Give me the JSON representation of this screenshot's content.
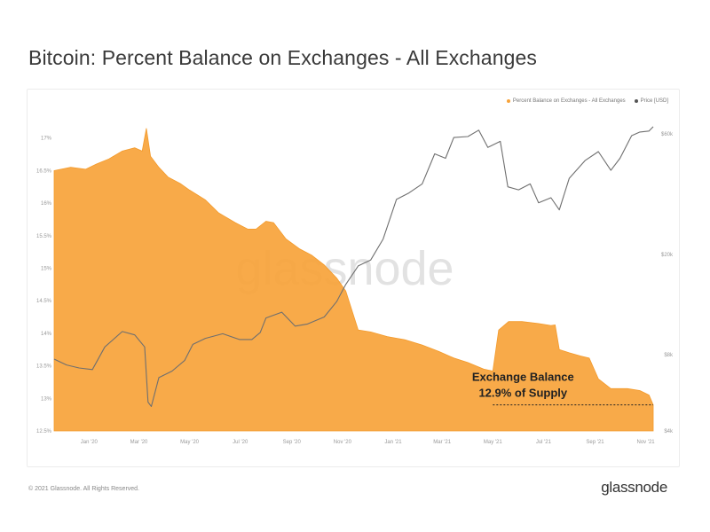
{
  "header": {
    "title": "Bitcoin: Percent Balance on Exchanges - All Exchanges"
  },
  "footer": {
    "copyright": "© 2021 Glassnode. All Rights Reserved.",
    "logo": "glassnode"
  },
  "watermark": "glassnode",
  "colors": {
    "balance": "#f7a33a",
    "price": "#8a8a8a",
    "accent": "#f7931a"
  },
  "chart_data": {
    "type": "area",
    "title": "Bitcoin: Percent Balance on Exchanges - All Exchanges",
    "legend_position": "top-right",
    "legend": [
      "Percent Balance on Exchanges - All Exchanges",
      "Price [USD]"
    ],
    "x_ticks": [
      "Jan '20",
      "Mar '20",
      "May '20",
      "Jul '20",
      "Sep '20",
      "Nov '20",
      "Jan '21",
      "Mar '21",
      "May '21",
      "Jul '21",
      "Sep '21",
      "Nov '21"
    ],
    "y_left_ticks": [
      "17%",
      "16.5%",
      "16%",
      "15.5%",
      "15%",
      "14.5%",
      "14%",
      "13.5%",
      "13%",
      "12.5%"
    ],
    "y_left_range": [
      12.5,
      17.2
    ],
    "y_right_ticks": [
      "$60k",
      "$20k",
      "$8k",
      "$4k"
    ],
    "y_right_values": [
      60000,
      20000,
      8000,
      4000
    ],
    "y_right_scale": "log",
    "y_right_range": [
      4000,
      65000
    ],
    "x_range": [
      "2019-11-20",
      "2021-11-10"
    ],
    "series": [
      {
        "name": "Percent Balance on Exchanges - All Exchanges",
        "type": "area",
        "points": [
          [
            "2019-11-20",
            16.5
          ],
          [
            "2019-12-10",
            16.55
          ],
          [
            "2019-12-28",
            16.52
          ],
          [
            "2020-01-10",
            16.6
          ],
          [
            "2020-01-25",
            16.68
          ],
          [
            "2020-02-10",
            16.8
          ],
          [
            "2020-02-25",
            16.85
          ],
          [
            "2020-03-05",
            16.8
          ],
          [
            "2020-03-10",
            17.15
          ],
          [
            "2020-03-15",
            16.72
          ],
          [
            "2020-03-25",
            16.55
          ],
          [
            "2020-04-05",
            16.4
          ],
          [
            "2020-04-20",
            16.3
          ],
          [
            "2020-05-01",
            16.2
          ],
          [
            "2020-05-20",
            16.05
          ],
          [
            "2020-06-05",
            15.85
          ],
          [
            "2020-06-25",
            15.7
          ],
          [
            "2020-07-10",
            15.6
          ],
          [
            "2020-07-20",
            15.6
          ],
          [
            "2020-08-01",
            15.72
          ],
          [
            "2020-08-10",
            15.7
          ],
          [
            "2020-08-25",
            15.45
          ],
          [
            "2020-09-10",
            15.3
          ],
          [
            "2020-09-25",
            15.2
          ],
          [
            "2020-10-10",
            15.05
          ],
          [
            "2020-10-25",
            14.85
          ],
          [
            "2020-11-05",
            14.65
          ],
          [
            "2020-11-20",
            14.05
          ],
          [
            "2020-12-05",
            14.02
          ],
          [
            "2020-12-25",
            13.95
          ],
          [
            "2021-01-15",
            13.9
          ],
          [
            "2021-02-05",
            13.82
          ],
          [
            "2021-02-25",
            13.72
          ],
          [
            "2021-03-15",
            13.62
          ],
          [
            "2021-04-01",
            13.55
          ],
          [
            "2021-04-20",
            13.45
          ],
          [
            "2021-05-01",
            13.42
          ],
          [
            "2021-05-08",
            14.05
          ],
          [
            "2021-05-20",
            14.18
          ],
          [
            "2021-06-05",
            14.18
          ],
          [
            "2021-06-25",
            14.15
          ],
          [
            "2021-07-10",
            14.12
          ],
          [
            "2021-07-15",
            14.13
          ],
          [
            "2021-07-20",
            13.75
          ],
          [
            "2021-08-01",
            13.7
          ],
          [
            "2021-08-15",
            13.65
          ],
          [
            "2021-08-25",
            13.62
          ],
          [
            "2021-09-05",
            13.3
          ],
          [
            "2021-09-20",
            13.15
          ],
          [
            "2021-10-10",
            13.15
          ],
          [
            "2021-10-25",
            13.12
          ],
          [
            "2021-11-05",
            13.05
          ],
          [
            "2021-11-10",
            12.9
          ]
        ]
      },
      {
        "name": "Price [USD]",
        "type": "line",
        "points": [
          [
            "2019-11-20",
            7700
          ],
          [
            "2019-12-05",
            7300
          ],
          [
            "2019-12-20",
            7100
          ],
          [
            "2020-01-05",
            7000
          ],
          [
            "2020-01-20",
            8600
          ],
          [
            "2020-02-10",
            9900
          ],
          [
            "2020-02-25",
            9600
          ],
          [
            "2020-03-08",
            8600
          ],
          [
            "2020-03-12",
            5200
          ],
          [
            "2020-03-16",
            5000
          ],
          [
            "2020-03-25",
            6500
          ],
          [
            "2020-04-10",
            6900
          ],
          [
            "2020-04-25",
            7600
          ],
          [
            "2020-05-05",
            8800
          ],
          [
            "2020-05-20",
            9300
          ],
          [
            "2020-06-10",
            9700
          ],
          [
            "2020-06-30",
            9200
          ],
          [
            "2020-07-15",
            9200
          ],
          [
            "2020-07-25",
            9800
          ],
          [
            "2020-08-01",
            11200
          ],
          [
            "2020-08-20",
            11800
          ],
          [
            "2020-09-05",
            10400
          ],
          [
            "2020-09-20",
            10600
          ],
          [
            "2020-10-10",
            11300
          ],
          [
            "2020-10-25",
            13000
          ],
          [
            "2020-11-05",
            15200
          ],
          [
            "2020-11-20",
            18000
          ],
          [
            "2020-12-05",
            19000
          ],
          [
            "2020-12-20",
            23000
          ],
          [
            "2021-01-05",
            33000
          ],
          [
            "2021-01-20",
            35000
          ],
          [
            "2021-02-05",
            38000
          ],
          [
            "2021-02-20",
            50000
          ],
          [
            "2021-03-05",
            48000
          ],
          [
            "2021-03-15",
            58000
          ],
          [
            "2021-04-01",
            58500
          ],
          [
            "2021-04-14",
            62000
          ],
          [
            "2021-04-25",
            53000
          ],
          [
            "2021-05-10",
            56000
          ],
          [
            "2021-05-19",
            37000
          ],
          [
            "2021-06-01",
            36000
          ],
          [
            "2021-06-15",
            38000
          ],
          [
            "2021-06-25",
            32000
          ],
          [
            "2021-07-10",
            33500
          ],
          [
            "2021-07-20",
            30000
          ],
          [
            "2021-08-01",
            40000
          ],
          [
            "2021-08-20",
            47000
          ],
          [
            "2021-09-05",
            51000
          ],
          [
            "2021-09-20",
            43000
          ],
          [
            "2021-10-01",
            48000
          ],
          [
            "2021-10-15",
            59000
          ],
          [
            "2021-10-25",
            61000
          ],
          [
            "2021-11-05",
            61500
          ],
          [
            "2021-11-10",
            64000
          ]
        ]
      }
    ],
    "annotation": {
      "line1": "Exchange Balance",
      "line2": "12.9% of Supply",
      "date": "2021-05-01",
      "value": 12.9
    }
  }
}
